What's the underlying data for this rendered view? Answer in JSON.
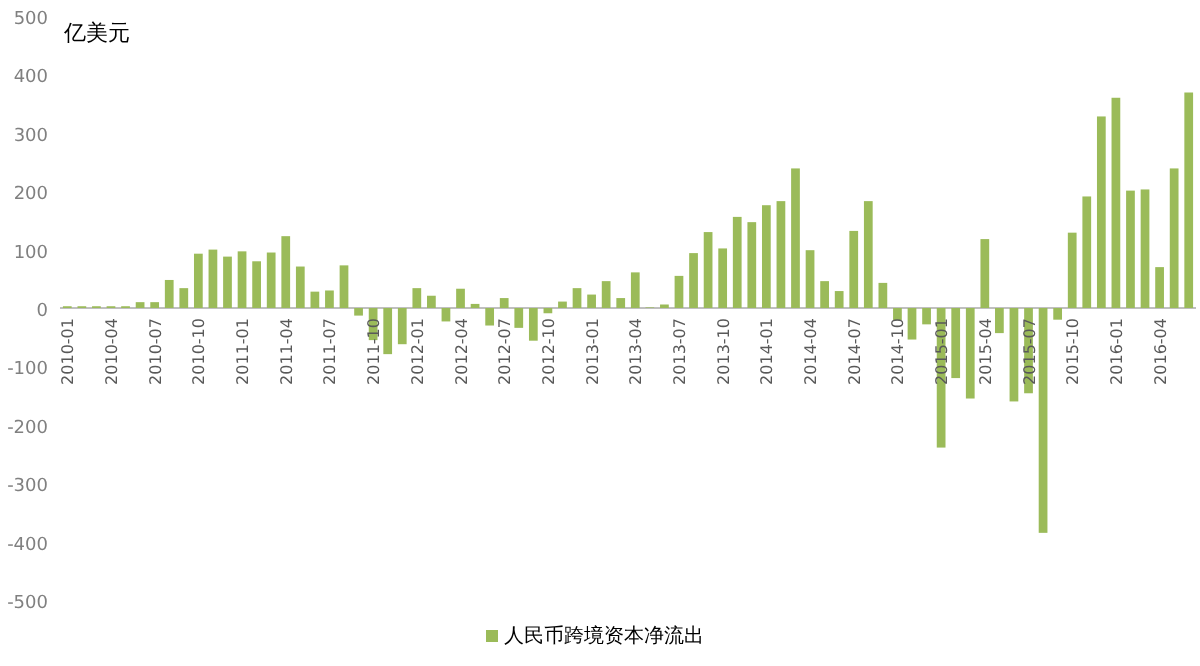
{
  "chart_data": {
    "type": "bar",
    "ylabel": "亿美元",
    "legend": "bottom",
    "grid": false,
    "categories": [
      "2010-01",
      null,
      null,
      "2010-04",
      null,
      null,
      "2010-07",
      null,
      null,
      "2010-10",
      null,
      null,
      "2011-01",
      null,
      null,
      "2011-04",
      null,
      null,
      "2011-07",
      null,
      null,
      "2011-10",
      null,
      null,
      "2012-01",
      null,
      null,
      "2012-04",
      null,
      null,
      "2012-07",
      null,
      null,
      "2012-10",
      null,
      null,
      "2013-01",
      null,
      null,
      "2013-04",
      null,
      null,
      "2013-07",
      null,
      null,
      "2013-10",
      null,
      null,
      "2014-01",
      null,
      null,
      "2014-04",
      null,
      null,
      "2014-07",
      null,
      null,
      "2014-10",
      null,
      null,
      "2015-01",
      null,
      null,
      "2015-04",
      null,
      null,
      "2015-07",
      null,
      null,
      "2015-10",
      null,
      null,
      "2016-01",
      null,
      null,
      "2016-04",
      null,
      null
    ],
    "series": [
      {
        "name": "人民币跨境资本净流出",
        "color": "#9bbb59",
        "values": [
          3,
          3,
          3,
          3,
          3,
          10,
          10,
          48,
          34,
          93,
          100,
          88,
          97,
          80,
          95,
          123,
          71,
          28,
          30,
          73,
          -13,
          -55,
          -79,
          -62,
          34,
          21,
          -23,
          33,
          7,
          -30,
          17,
          -34,
          -56,
          -9,
          11,
          34,
          23,
          46,
          17,
          61,
          1,
          6,
          55,
          94,
          130,
          102,
          156,
          147,
          176,
          183,
          239,
          99,
          46,
          29,
          132,
          183,
          43,
          -21,
          -54,
          -28,
          -239,
          -120,
          -155,
          118,
          -43,
          -160,
          -146,
          -385,
          -20,
          129,
          191,
          328,
          360,
          201,
          203,
          70,
          239,
          369
        ]
      }
    ],
    "ylim": [
      -500,
      500
    ],
    "yticks": [
      -500,
      -400,
      -300,
      -200,
      -100,
      0,
      100,
      200,
      300,
      400,
      500
    ]
  }
}
